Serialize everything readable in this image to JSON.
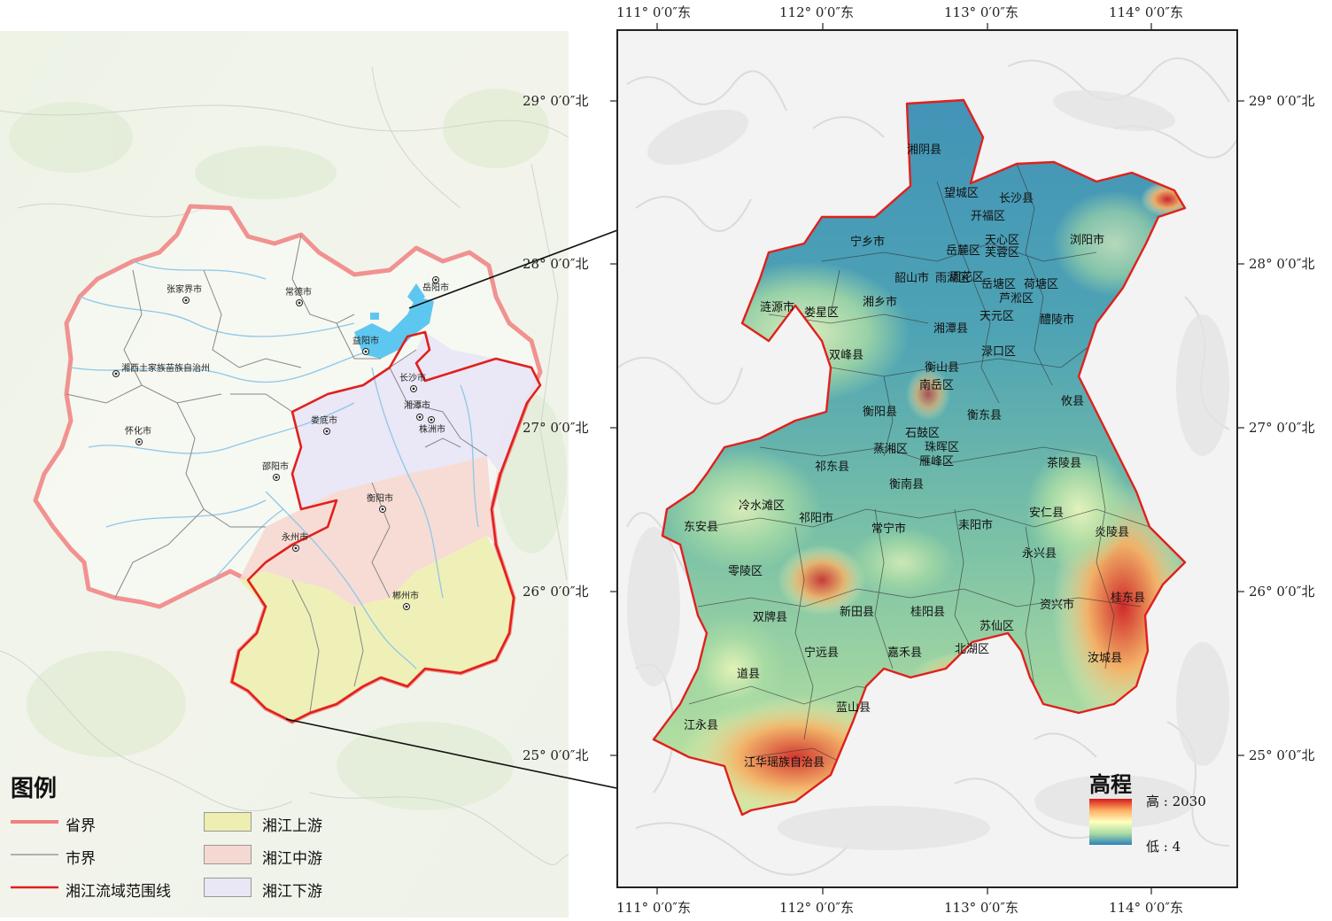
{
  "left_map": {
    "cities": [
      {
        "name": "张家界市"
      },
      {
        "name": "常德市"
      },
      {
        "name": "岳阳市"
      },
      {
        "name": "益阳市"
      },
      {
        "name": "湘西土家族苗族自治州"
      },
      {
        "name": "长沙市"
      },
      {
        "name": "怀化市"
      },
      {
        "name": "娄底市"
      },
      {
        "name": "湘潭市"
      },
      {
        "name": "株洲市"
      },
      {
        "name": "邵阳市"
      },
      {
        "name": "衡阳市"
      },
      {
        "name": "永州市"
      },
      {
        "name": "郴州市"
      }
    ]
  },
  "legend": {
    "title": "图例",
    "items": [
      {
        "label": "省界",
        "color": "#f08080"
      },
      {
        "label": "市界",
        "color": "#888888"
      },
      {
        "label": "湘江流域范围线",
        "color": "#e0201c"
      },
      {
        "label": "湘江上游",
        "color": "#eeeeb0"
      },
      {
        "label": "湘江中游",
        "color": "#f6d8d2"
      },
      {
        "label": "湘江下游",
        "color": "#e9e6f6"
      }
    ]
  },
  "grid": {
    "top_lon": [
      "111° 0′0″东",
      "112° 0′0″东",
      "113° 0′0″东",
      "114° 0′0″东"
    ],
    "bottom_lon": [
      "111° 0′0″东",
      "112° 0′0″东",
      "113° 0′0″东",
      "114° 0′0″东"
    ],
    "left_lat": [
      "29° 0′0″北",
      "28° 0′0″北",
      "27° 0′0″北",
      "26° 0′0″北",
      "25° 0′0″北"
    ],
    "right_lat": [
      "29° 0′0″北",
      "28° 0′0″北",
      "27° 0′0″北",
      "26° 0′0″北",
      "25° 0′0″北"
    ]
  },
  "right_map": {
    "counties": [
      "湘阴县",
      "望城区",
      "长沙县",
      "岳麓区",
      "开福区",
      "天心区",
      "芙蓉区",
      "雨花区",
      "浏阳市",
      "宁乡市",
      "岳塘区",
      "雨湖区",
      "韶山市",
      "涟源市",
      "娄星区",
      "湘乡市",
      "荷塘区",
      "芦淞区",
      "天元区",
      "醴陵市",
      "湘潭县",
      "渌口区",
      "双峰县",
      "衡山县",
      "南岳区",
      "衡阳县",
      "衡东县",
      "攸县",
      "石鼓区",
      "蒸湘区",
      "珠晖区",
      "雁峰区",
      "祁东县",
      "茶陵县",
      "衡南县",
      "冷水滩区",
      "祁阳市",
      "安仁县",
      "东安县",
      "常宁市",
      "耒阳市",
      "炎陵县",
      "零陵区",
      "永兴县",
      "桂东县",
      "资兴市",
      "双牌县",
      "新田县",
      "桂阳县",
      "苏仙区",
      "北湖区",
      "宁远县",
      "嘉禾县",
      "汝城县",
      "道县",
      "蓝山县",
      "江永县",
      "江华瑶族自治县"
    ]
  },
  "elevation": {
    "title": "高程",
    "high_label": "高 : 2030",
    "low_label": "低 : 4",
    "colors": [
      "#d7191c",
      "#fdae61",
      "#ffffbf",
      "#abdda4",
      "#2b83ba"
    ]
  }
}
